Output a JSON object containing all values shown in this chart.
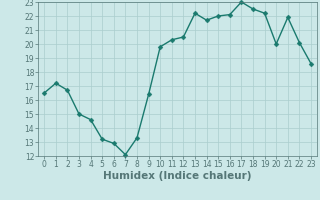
{
  "x": [
    0,
    1,
    2,
    3,
    4,
    5,
    6,
    7,
    8,
    9,
    10,
    11,
    12,
    13,
    14,
    15,
    16,
    17,
    18,
    19,
    20,
    21,
    22,
    23
  ],
  "y": [
    16.5,
    17.2,
    16.7,
    15.0,
    14.6,
    13.2,
    12.9,
    12.1,
    13.3,
    16.4,
    19.8,
    20.3,
    20.5,
    22.2,
    21.7,
    22.0,
    22.1,
    23.0,
    22.5,
    22.2,
    20.0,
    21.9,
    20.1,
    18.6
  ],
  "line_color": "#1a7a6e",
  "marker": "D",
  "markersize": 2.5,
  "linewidth": 1.0,
  "bg_color": "#cce8e8",
  "grid_color": "#aacece",
  "xlabel": "Humidex (Indice chaleur)",
  "ylim": [
    12,
    23
  ],
  "xlim": [
    -0.5,
    23.5
  ],
  "yticks": [
    12,
    13,
    14,
    15,
    16,
    17,
    18,
    19,
    20,
    21,
    22,
    23
  ],
  "xticks": [
    0,
    1,
    2,
    3,
    4,
    5,
    6,
    7,
    8,
    9,
    10,
    11,
    12,
    13,
    14,
    15,
    16,
    17,
    18,
    19,
    20,
    21,
    22,
    23
  ],
  "tick_labelsize": 5.5,
  "xlabel_fontsize": 7.5,
  "fig_bg": "#cce8e8",
  "spine_color": "#557777"
}
